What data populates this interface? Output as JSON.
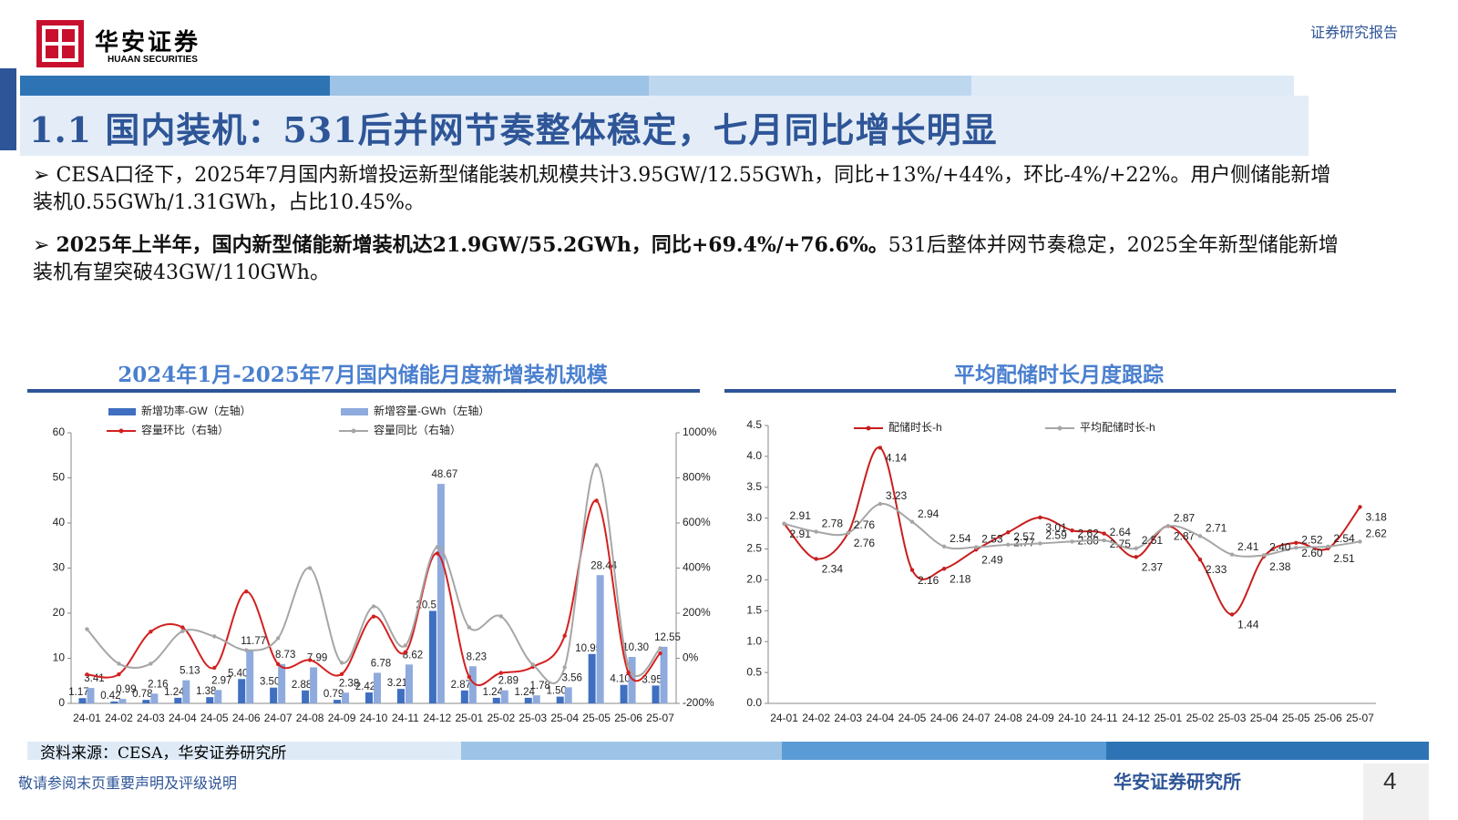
{
  "header": {
    "brand": "华安证券",
    "brand_en": "HUAAN SECURITIES",
    "report_type": "证券研究报告"
  },
  "title": "1.1 国内装机：531后并网节奏整体稳定，七月同比增长明显",
  "bullets": [
    {
      "text": "CESA口径下，2025年7月国内新增投运新型储能装机规模共计3.95GW/12.55GWh，同比+13%/+44%，环比-4%/+22%。用户侧储能新增装机0.55GWh/1.31GWh，占比10.45%。"
    },
    {
      "bold": "2025年上半年，国内新型储能新增装机达21.9GW/55.2GWh，同比+69.4%/+76.6%。",
      "text": "531后整体并网节奏稳定，2025全年新型储能新增装机有望突破43GW/110GWh。"
    }
  ],
  "chart_data": [
    {
      "type": "bar",
      "title": "2024年1月-2025年7月国内储能月度新增装机规模",
      "categories": [
        "24-01",
        "24-02",
        "24-03",
        "24-04",
        "24-05",
        "24-06",
        "24-07",
        "24-08",
        "24-09",
        "24-10",
        "24-11",
        "24-12",
        "25-01",
        "25-02",
        "25-03",
        "25-04",
        "25-05",
        "25-06",
        "25-07"
      ],
      "series": [
        {
          "name": "新增功率-GW（左轴）",
          "type": "bar",
          "color": "#3f6fc0",
          "values": [
            1.17,
            0.42,
            0.78,
            1.24,
            1.38,
            5.4,
            3.5,
            2.88,
            0.79,
            2.42,
            3.21,
            20.51,
            2.87,
            1.24,
            1.24,
            1.5,
            10.95,
            4.1,
            3.95
          ],
          "value_labels": [
            "1.17",
            "0.42",
            "0.78",
            "1.24",
            "1.38",
            "5.40",
            "3.50",
            "2.88",
            "0.79",
            "2.42",
            "3.21",
            "20.51",
            "2.87",
            "1.24",
            "1.24",
            "1.50",
            "10.95",
            "4.10",
            "3.95"
          ]
        },
        {
          "name": "新增容量-GWh（左轴）",
          "type": "bar",
          "color": "#8faadc",
          "values": [
            3.41,
            0.99,
            2.16,
            5.13,
            2.97,
            11.77,
            8.73,
            7.99,
            2.38,
            6.78,
            8.62,
            48.67,
            8.23,
            2.89,
            1.78,
            3.56,
            28.44,
            10.3,
            12.55
          ],
          "value_labels": [
            "3.41",
            "0.99",
            "2.16",
            "5.13",
            "2.97",
            "11.77",
            "8.73",
            "7.99",
            "2.38",
            "6.78",
            "8.62",
            "48.67",
            "8.23",
            "2.89",
            "1.78",
            "3.56",
            "28.44",
            "10.30",
            "12.55"
          ]
        },
        {
          "name": "容量环比（右轴）",
          "type": "line",
          "axis": "y2",
          "color": "#d42020",
          "values": [
            -72,
            -71,
            118,
            137,
            -42,
            296,
            -26,
            -8,
            -70,
            185,
            27,
            465,
            -83,
            -65,
            -38,
            100,
            699,
            -64,
            22
          ]
        },
        {
          "name": "容量同比（右轴）",
          "type": "line",
          "axis": "y2",
          "color": "#a6a6a6",
          "values": [
            129,
            -24,
            -24,
            120,
            97,
            36,
            89,
            400,
            -20,
            230,
            57,
            493,
            137,
            186,
            -28,
            -40,
            857,
            -32,
            44
          ]
        }
      ],
      "ylim": [
        0,
        60
      ],
      "yticks": [
        0,
        10,
        20,
        30,
        40,
        50,
        60
      ],
      "y2lim": [
        -200,
        1000
      ],
      "y2ticks": [
        {
          "value": -200,
          "label": "-200%"
        },
        {
          "value": 0,
          "label": "0%"
        },
        {
          "value": 200,
          "label": "200%"
        },
        {
          "value": 400,
          "label": "400%"
        },
        {
          "value": 600,
          "label": "600%"
        },
        {
          "value": 800,
          "label": "800%"
        },
        {
          "value": 1000,
          "label": "1000%"
        }
      ]
    },
    {
      "type": "line",
      "title": "平均配储时长月度跟踪",
      "categories": [
        "24-01",
        "24-02",
        "24-03",
        "24-04",
        "24-05",
        "24-06",
        "24-07",
        "24-08",
        "24-09",
        "24-10",
        "24-11",
        "24-12",
        "25-01",
        "25-02",
        "25-03",
        "25-04",
        "25-05",
        "25-06",
        "25-07"
      ],
      "series": [
        {
          "name": "配储时长-h",
          "color": "#c81e1e",
          "values": [
            2.91,
            2.34,
            2.76,
            4.14,
            2.16,
            2.18,
            2.49,
            2.77,
            3.01,
            2.8,
            2.75,
            2.37,
            2.87,
            2.33,
            1.44,
            2.38,
            2.6,
            2.51,
            3.18
          ],
          "value_labels": [
            "2.91",
            "2.34",
            "2.76",
            "4.14",
            "2.16",
            "2.18",
            "2.49",
            "2.77",
            "3.01",
            "2.80",
            "2.75",
            "2.37",
            "2.87",
            "2.33",
            "1.44",
            "2.38",
            "2.60",
            "2.51",
            "3.18"
          ]
        },
        {
          "name": "平均配储时长-h",
          "color": "#a6a6a6",
          "values": [
            2.91,
            2.78,
            2.76,
            3.23,
            2.94,
            2.54,
            2.53,
            2.57,
            2.59,
            2.62,
            2.64,
            2.51,
            2.87,
            2.71,
            2.41,
            2.4,
            2.52,
            2.54,
            2.62
          ],
          "value_labels": [
            "2.91",
            "2.78",
            "2.76",
            "3.23",
            "2.94",
            "2.54",
            "2.53",
            "2.57",
            "2.59",
            "2.62",
            "2.64",
            "2.51",
            "2.87",
            "2.71",
            "2.41",
            "2.40",
            "2.52",
            "2.54",
            "2.62"
          ]
        }
      ],
      "ylim": [
        0,
        4.5
      ],
      "yticks": [
        {
          "value": 0,
          "label": "0.0"
        },
        0.5,
        {
          "value": 1,
          "label": "1.0"
        },
        1.5,
        {
          "value": 2,
          "label": "2.0"
        },
        2.5,
        {
          "value": 3,
          "label": "3.0"
        },
        3.5,
        {
          "value": 4,
          "label": "4.0"
        },
        4.5
      ]
    }
  ],
  "source": "资料来源：CESA，华安证券研究所",
  "footer": {
    "disclaimer": "敬请参阅末页重要声明及评级说明",
    "org": "华安证券研究所",
    "page": 4
  }
}
